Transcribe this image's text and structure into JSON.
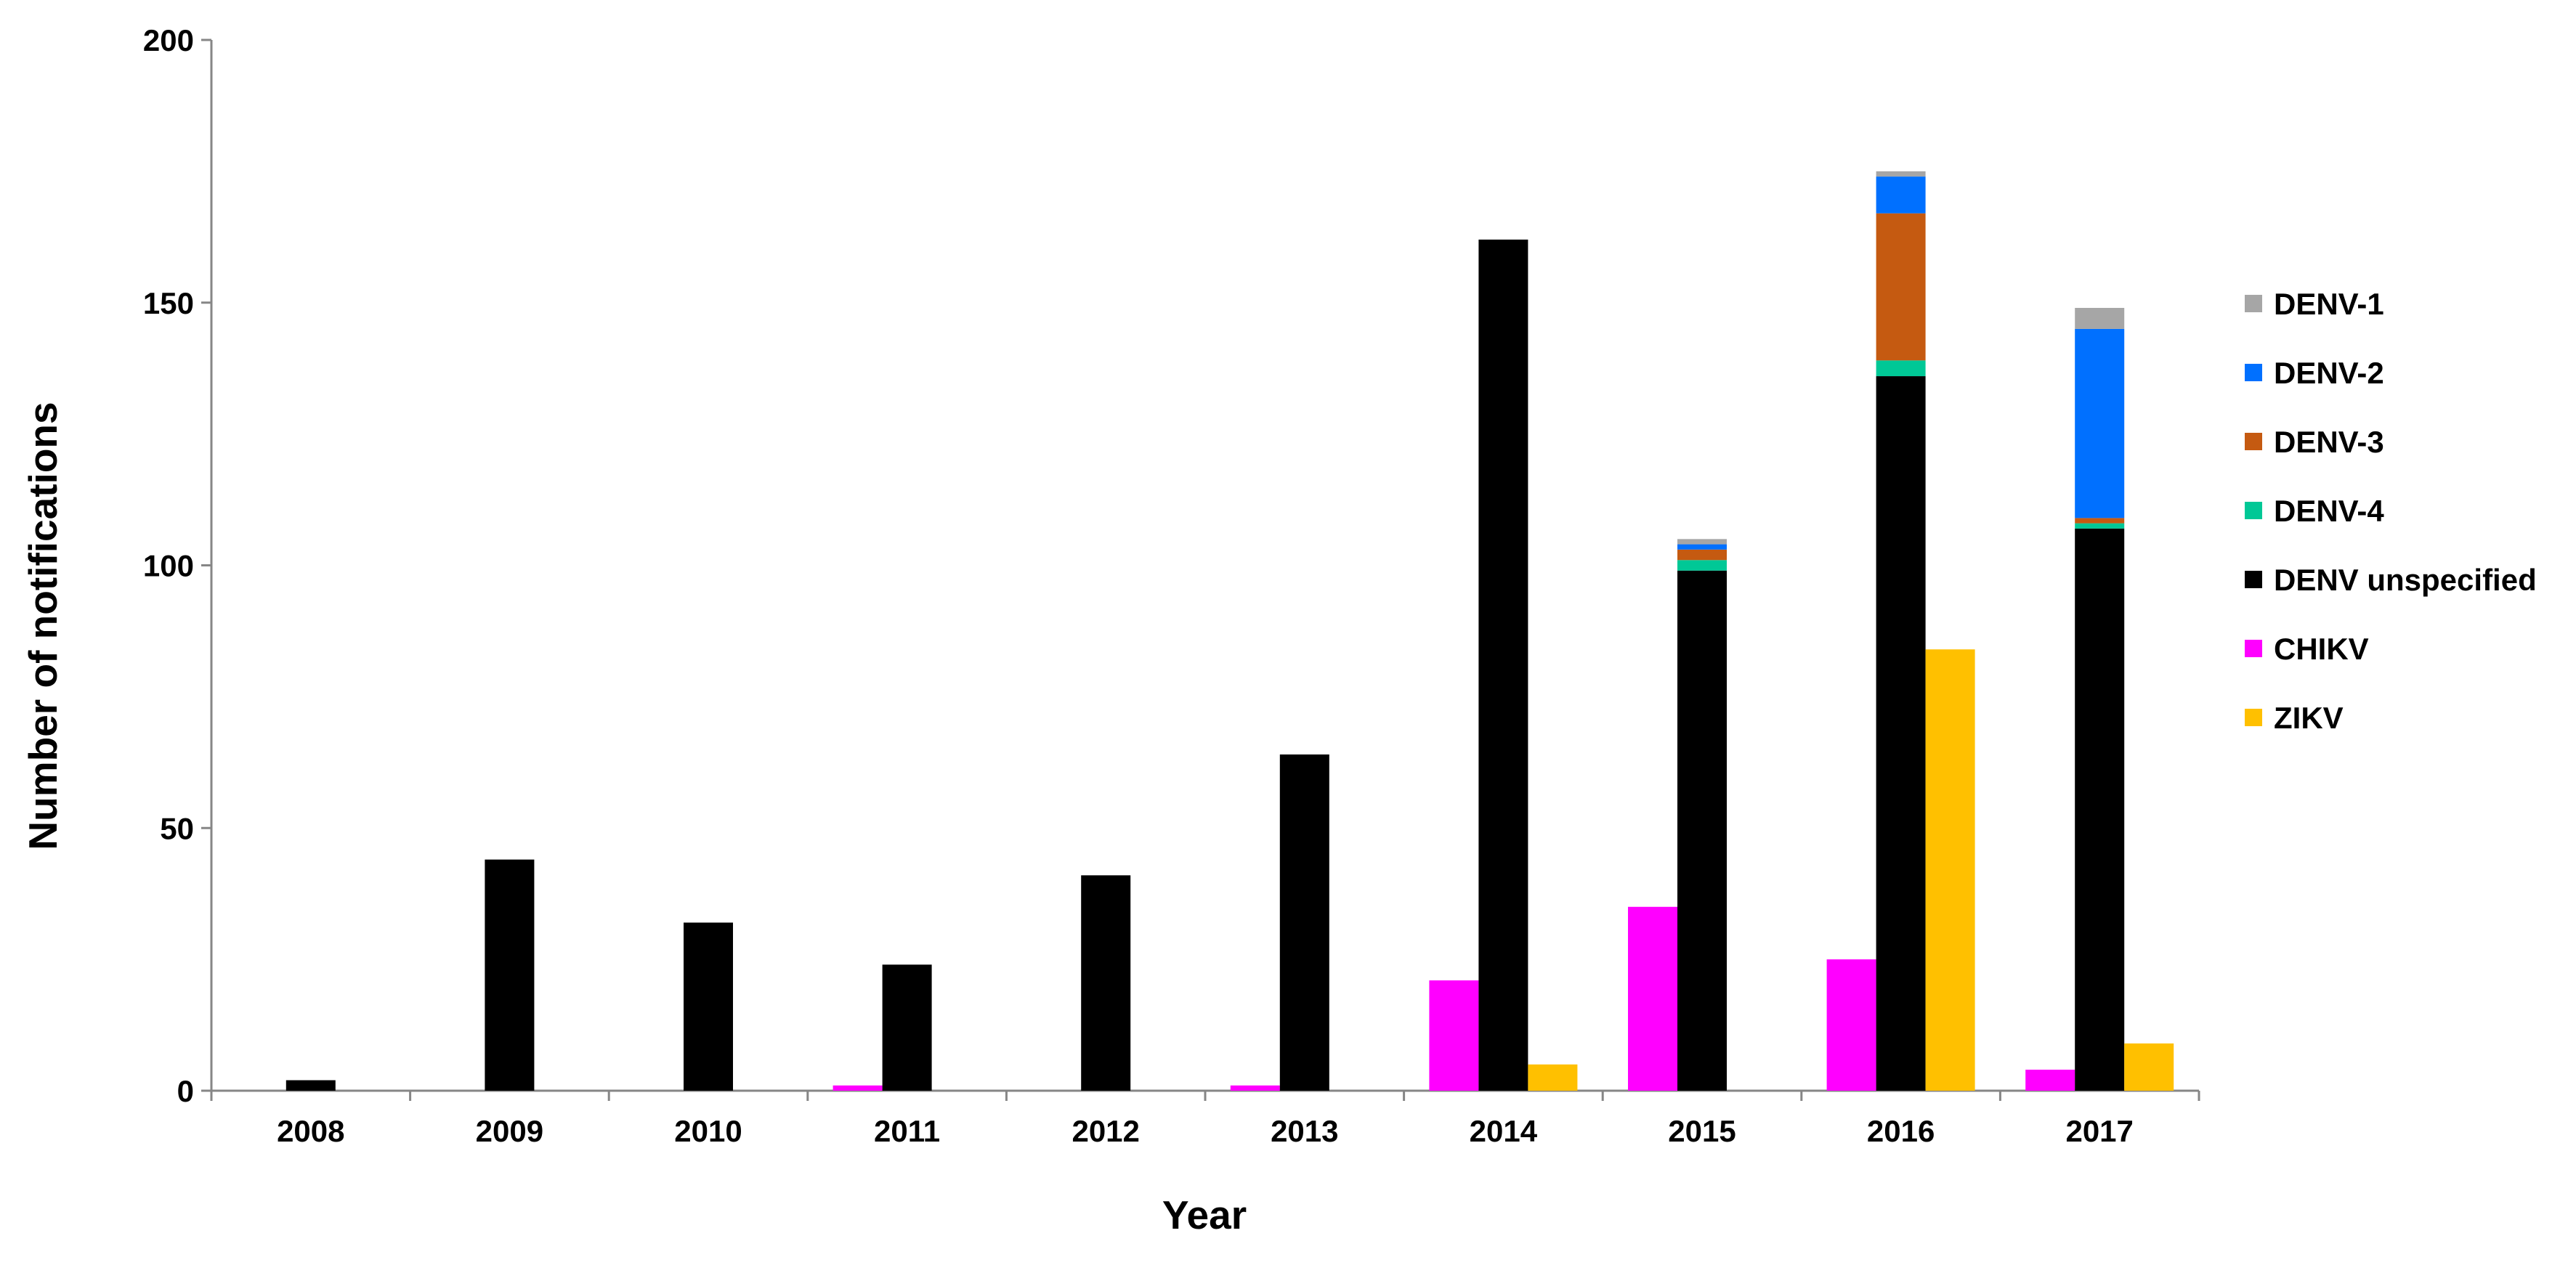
{
  "chart_data": {
    "type": "bar",
    "xlabel": "Year",
    "ylabel": "Number of notifications",
    "ylim": [
      0,
      200
    ],
    "yticks": [
      0,
      50,
      100,
      150,
      200
    ],
    "categories": [
      "2008",
      "2009",
      "2010",
      "2011",
      "2012",
      "2013",
      "2014",
      "2015",
      "2016",
      "2017"
    ],
    "grid": false,
    "legend_position": "right",
    "bar_groups": [
      {
        "name": "CHIKV",
        "color": "#ff00ff",
        "values": [
          0,
          0,
          0,
          1,
          0,
          1,
          21,
          35,
          25,
          4
        ]
      },
      {
        "name": "DENV",
        "stacked": true,
        "stack": [
          {
            "name": "DENV unspecified",
            "color": "#000000",
            "values": [
              2,
              44,
              32,
              24,
              41,
              64,
              162,
              99,
              136,
              107
            ]
          },
          {
            "name": "DENV-4",
            "color": "#00c896",
            "values": [
              0,
              0,
              0,
              0,
              0,
              0,
              0,
              2,
              3,
              1
            ]
          },
          {
            "name": "DENV-3",
            "color": "#c55a11",
            "values": [
              0,
              0,
              0,
              0,
              0,
              0,
              0,
              2,
              28,
              1
            ]
          },
          {
            "name": "DENV-2",
            "color": "#0070ff",
            "values": [
              0,
              0,
              0,
              0,
              0,
              0,
              0,
              1,
              7,
              36
            ]
          },
          {
            "name": "DENV-1",
            "color": "#a6a6a6",
            "values": [
              0,
              0,
              0,
              0,
              0,
              0,
              0,
              1,
              1,
              4
            ]
          }
        ]
      },
      {
        "name": "ZIKV",
        "color": "#ffc000",
        "values": [
          0,
          0,
          0,
          0,
          0,
          0,
          5,
          0,
          84,
          9
        ]
      }
    ],
    "legend": [
      {
        "label": "DENV-1",
        "color": "#a6a6a6"
      },
      {
        "label": "DENV-2",
        "color": "#0070ff"
      },
      {
        "label": "DENV-3",
        "color": "#c55a11"
      },
      {
        "label": "DENV-4",
        "color": "#00c896"
      },
      {
        "label": "DENV unspecified",
        "color": "#000000"
      },
      {
        "label": "CHIKV",
        "color": "#ff00ff"
      },
      {
        "label": "ZIKV",
        "color": "#ffc000"
      }
    ]
  }
}
